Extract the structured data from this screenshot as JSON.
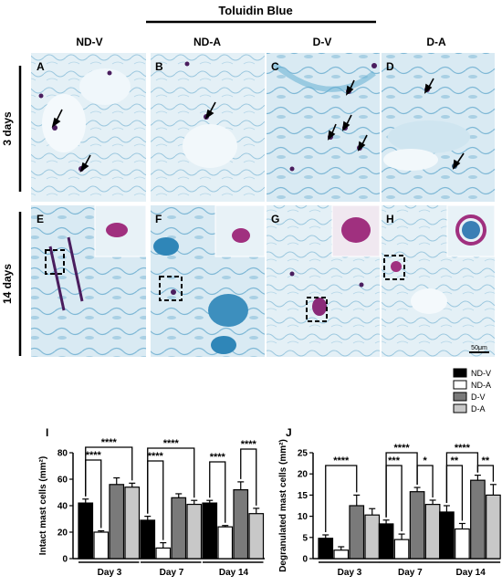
{
  "header": {
    "stain_title": "Toluidin Blue"
  },
  "columns": [
    "ND-V",
    "ND-A",
    "D-V",
    "D-A"
  ],
  "rows": [
    "3 days",
    "14 days"
  ],
  "panels_top": [
    "A",
    "B",
    "C",
    "D"
  ],
  "panels_bottom": [
    "E",
    "F",
    "G",
    "H"
  ],
  "scale_bar": "50μm",
  "colors": {
    "stain_bg": "#dcebf3",
    "stain_blue": "#5aa9cf",
    "mast_purple": "#4a1d5e",
    "magenta": "#a0307f"
  },
  "icons": [
    "arrow-icon",
    "dashed-box-icon"
  ],
  "legend": [
    "ND-V",
    "ND-A",
    "D-V",
    "D-A"
  ],
  "series_colors": [
    "#000000",
    "#ffffff",
    "#7a7a7a",
    "#c8c8c8"
  ],
  "chart_data": [
    {
      "type": "bar",
      "panel": "I",
      "ylabel": "Intact mast cells (mm²)",
      "ylim": [
        0,
        80
      ],
      "yticks": [
        "0",
        "20",
        "40",
        "60",
        "80"
      ],
      "categories": [
        "Day 3",
        "Day 7",
        "Day 14"
      ],
      "series": [
        {
          "name": "ND-V",
          "values": [
            42,
            29,
            42
          ],
          "errors": [
            3,
            3,
            2
          ]
        },
        {
          "name": "ND-A",
          "values": [
            20,
            8,
            24
          ],
          "errors": [
            1,
            4,
            1
          ]
        },
        {
          "name": "D-V",
          "values": [
            56,
            46,
            52
          ],
          "errors": [
            5,
            3,
            6
          ]
        },
        {
          "name": "D-A",
          "values": [
            54,
            41,
            34
          ],
          "errors": [
            3,
            3,
            4
          ]
        }
      ],
      "significance": [
        {
          "label": "****",
          "from": 0,
          "to": 3,
          "group": 0,
          "level": 1
        },
        {
          "label": "****",
          "from": 0,
          "to": 1,
          "group": 0,
          "level": 0
        },
        {
          "label": "****",
          "from": 0,
          "to": 3,
          "group": 1,
          "level": 1
        },
        {
          "label": "****",
          "from": 0,
          "to": 1,
          "group": 1,
          "level": 0
        },
        {
          "label": "****",
          "from": 0,
          "to": 1,
          "group": 2,
          "level": 0
        },
        {
          "label": "****",
          "from": 2,
          "to": 3,
          "group": 2,
          "level": 1
        }
      ]
    },
    {
      "type": "bar",
      "panel": "J",
      "ylabel": "Degranulated mast cells (mm²)",
      "ylim": [
        0,
        25
      ],
      "yticks": [
        "0",
        "5",
        "10",
        "15",
        "20",
        "25"
      ],
      "categories": [
        "Day 3",
        "Day 7",
        "Day 14"
      ],
      "series": [
        {
          "name": "ND-V",
          "values": [
            4.8,
            8.2,
            11
          ],
          "errors": [
            0.8,
            0.9,
            1.5
          ]
        },
        {
          "name": "ND-A",
          "values": [
            2.0,
            4.5,
            7.0
          ],
          "errors": [
            0.8,
            1.3,
            1.3
          ]
        },
        {
          "name": "D-V",
          "values": [
            12.5,
            15.8,
            18.5
          ],
          "errors": [
            2.5,
            1.0,
            1.2
          ]
        },
        {
          "name": "D-A",
          "values": [
            10.3,
            12.8,
            15.0
          ],
          "errors": [
            1.5,
            1.0,
            2.5
          ]
        }
      ],
      "significance": [
        {
          "label": "****",
          "from": 0,
          "to": 2,
          "group": 0,
          "level": 0
        },
        {
          "label": "****",
          "from": 0,
          "to": 2,
          "group": 1,
          "level": 1
        },
        {
          "label": "***",
          "from": 0,
          "to": 1,
          "group": 1,
          "level": 0
        },
        {
          "label": "*",
          "from": 2,
          "to": 3,
          "group": 1,
          "level": 0
        },
        {
          "label": "****",
          "from": 0,
          "to": 2,
          "group": 2,
          "level": 1
        },
        {
          "label": "**",
          "from": 0,
          "to": 1,
          "group": 2,
          "level": 0
        },
        {
          "label": "**",
          "from": 2,
          "to": 3,
          "group": 2,
          "level": 0
        }
      ]
    }
  ],
  "chart_panel_labels": [
    "I",
    "J"
  ]
}
